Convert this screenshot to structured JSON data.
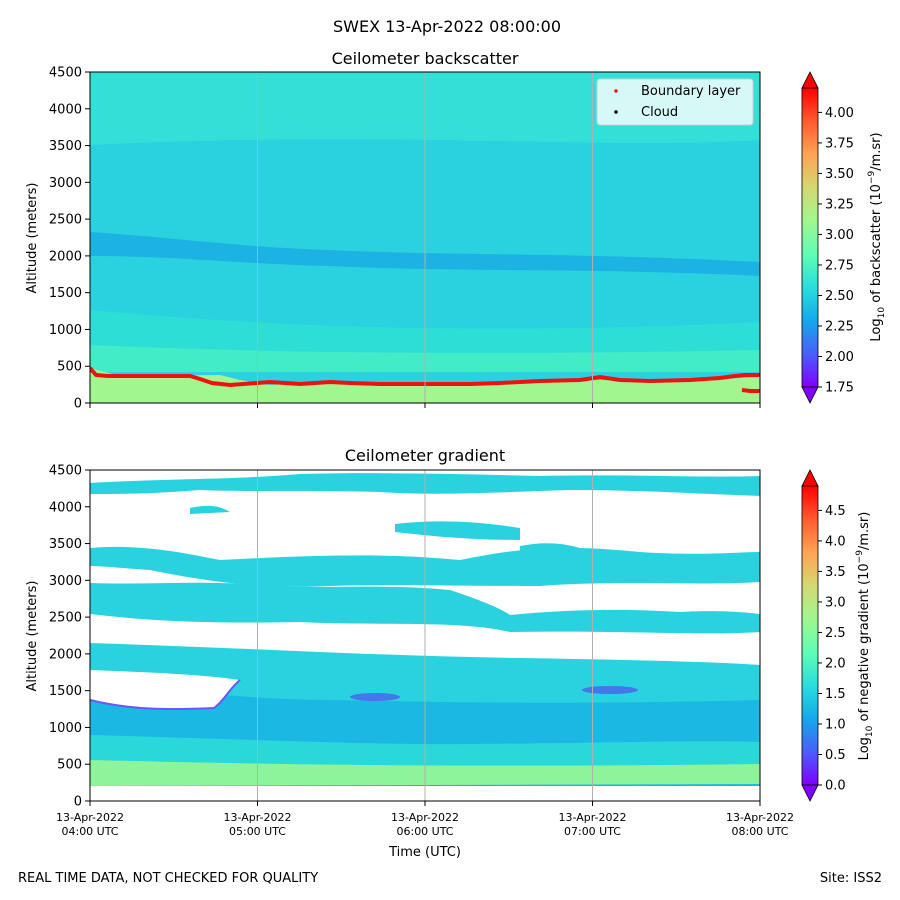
{
  "title": "SWEX 13-Apr-2022 08:00:00",
  "footer_left": "REAL TIME DATA, NOT CHECKED FOR QUALITY",
  "footer_right": "Site: ISS2",
  "colors": {
    "boundary_layer": "#ee1111",
    "cloud": "#000000",
    "colormap": [
      "#8000ff",
      "#4a5ef9",
      "#16a7e9",
      "#2adcdc",
      "#5efcb5",
      "#a2f68f",
      "#d5d772",
      "#ffa254",
      "#ff5a30",
      "#ff0000"
    ]
  },
  "chart_data": [
    {
      "type": "heatmap",
      "title": "Ceilometer backscatter",
      "ylabel": "Altitude (meters)",
      "xlabel": "",
      "ylim": [
        0,
        4500
      ],
      "yticks": [
        0,
        500,
        1000,
        1500,
        2000,
        2500,
        3000,
        3500,
        4000,
        4500
      ],
      "xlim_hours": [
        4,
        8
      ],
      "x_gridlines_hours": [
        5,
        6,
        7
      ],
      "legend": {
        "position": "top-right",
        "entries": [
          "Boundary layer",
          "Cloud"
        ]
      },
      "colorbar": {
        "label": "Log10 of backscatter (10^-9/m.sr)",
        "label_main": "Log",
        "label_sub": "10",
        "label_rest": " of backscatter (10",
        "label_sup": "−9",
        "label_end": "/m.sr)",
        "vmin": 1.75,
        "vmax": 4.2,
        "ticks": [
          "1.75",
          "2.00",
          "2.25",
          "2.50",
          "2.75",
          "3.00",
          "3.25",
          "3.50",
          "3.75",
          "4.00"
        ]
      },
      "layers": [
        {
          "name": "surface",
          "from": 0,
          "to": 420,
          "value": 3.15
        },
        {
          "name": "mixed",
          "from": 420,
          "to": 1250,
          "value": 2.62
        },
        {
          "name": "mid",
          "from": 1250,
          "to": 1850,
          "value": 2.48
        },
        {
          "name": "band",
          "from": 1850,
          "to": 2300,
          "value": 2.35
        },
        {
          "name": "upper",
          "from": 2300,
          "to": 3800,
          "value": 2.5
        },
        {
          "name": "top",
          "from": 3800,
          "to": 4500,
          "value": 2.62
        }
      ],
      "boundary_layer": {
        "name": "Boundary layer",
        "x_hours": [
          4.0,
          4.05,
          4.15,
          4.3,
          4.5,
          4.65,
          4.72,
          4.8,
          4.9,
          5.0,
          5.1,
          5.25,
          5.4,
          5.5,
          5.6,
          5.7,
          5.8,
          6.0,
          6.2,
          6.4,
          6.6,
          6.8,
          6.9,
          7.0,
          7.1,
          7.2,
          7.4,
          7.6,
          7.75,
          7.85,
          7.9
        ],
        "altitude_m": [
          480,
          390,
          380,
          380,
          380,
          380,
          350,
          290,
          260,
          280,
          285,
          250,
          270,
          280,
          260,
          255,
          260,
          260,
          260,
          265,
          295,
          310,
          310,
          340,
          320,
          300,
          290,
          300,
          340,
          360,
          370
        ]
      }
    },
    {
      "type": "heatmap",
      "title": "Ceilometer gradient",
      "ylabel": "Altitude (meters)",
      "xlabel": "Time (UTC)",
      "ylim": [
        0,
        4500
      ],
      "yticks": [
        0,
        500,
        1000,
        1500,
        2000,
        2500,
        3000,
        3500,
        4000,
        4500
      ],
      "x_ticks_hours": [
        4,
        5,
        6,
        7,
        8
      ],
      "x_tick_labels": [
        [
          "13-Apr-2022",
          "04:00 UTC"
        ],
        [
          "13-Apr-2022",
          "05:00 UTC"
        ],
        [
          "13-Apr-2022",
          "06:00 UTC"
        ],
        [
          "13-Apr-2022",
          "07:00 UTC"
        ],
        [
          "13-Apr-2022",
          "08:00 UTC"
        ]
      ],
      "colorbar": {
        "label": "Log10 of negative gradient (10^-9/m.sr)",
        "label_main": "Log",
        "label_sub": "10",
        "label_rest": " of negative gradient (10",
        "label_sup": "−9",
        "label_end": "/m.sr)",
        "vmin": 0.0,
        "vmax": 4.9,
        "ticks": [
          "0.0",
          "0.5",
          "1.0",
          "1.5",
          "2.0",
          "2.5",
          "3.0",
          "3.5",
          "4.0",
          "4.5"
        ]
      },
      "layers": [
        {
          "name": "surface",
          "from": 180,
          "to": 520,
          "value": 2.1
        },
        {
          "name": "lower",
          "from": 520,
          "to": 1500,
          "value": 1.3
        },
        {
          "name": "elevated",
          "from": 1500,
          "to": 2100,
          "value": 1.7
        },
        {
          "name": "cloud-layer-2500",
          "from": 2350,
          "to": 2750,
          "value": 1.6
        },
        {
          "name": "cloud-layer-3200",
          "from": 2950,
          "to": 3400,
          "value": 1.6
        },
        {
          "name": "cloud-layer-4200",
          "from": 4050,
          "to": 4450,
          "value": 1.5
        }
      ]
    }
  ]
}
